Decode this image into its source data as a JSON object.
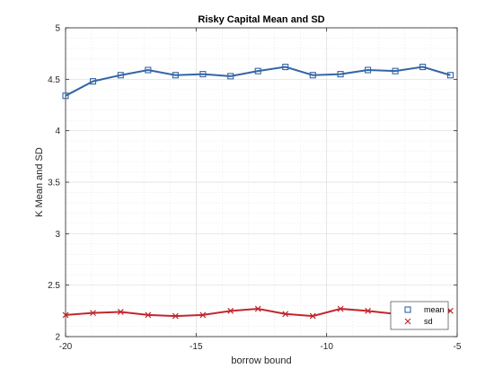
{
  "chart_data": {
    "type": "line",
    "title": "Risky Capital Mean and SD",
    "xlabel": "borrow bound",
    "ylabel": "K Mean and SD",
    "xlim": [
      -20,
      -5
    ],
    "ylim": [
      2,
      5
    ],
    "x_ticks": [
      -20,
      -15,
      -10,
      -5
    ],
    "x_tick_labels": [
      "-20",
      "-15",
      "-10",
      "-5"
    ],
    "y_ticks": [
      2,
      2.5,
      3,
      3.5,
      4,
      4.5,
      5
    ],
    "y_tick_labels": [
      "2",
      "2.5",
      "3",
      "3.5",
      "4",
      "4.5",
      "5"
    ],
    "grid": true,
    "minor_grid": true,
    "legend_position": "bottom-right",
    "x": [
      -20,
      -18.95,
      -17.89,
      -16.84,
      -15.79,
      -14.74,
      -13.68,
      -12.63,
      -11.58,
      -10.53,
      -9.47,
      -8.42,
      -7.37,
      -6.32,
      -5.26
    ],
    "series": [
      {
        "name": "mean",
        "color": "#3465a4",
        "marker": "square",
        "values": [
          4.34,
          4.48,
          4.54,
          4.59,
          4.54,
          4.55,
          4.53,
          4.58,
          4.62,
          4.54,
          4.55,
          4.59,
          4.58,
          4.62,
          4.54
        ]
      },
      {
        "name": "sd",
        "color": "#c1272d",
        "marker": "x",
        "values": [
          2.21,
          2.23,
          2.24,
          2.21,
          2.2,
          2.21,
          2.25,
          2.27,
          2.22,
          2.2,
          2.27,
          2.25,
          2.22,
          2.28,
          2.25
        ]
      }
    ]
  }
}
